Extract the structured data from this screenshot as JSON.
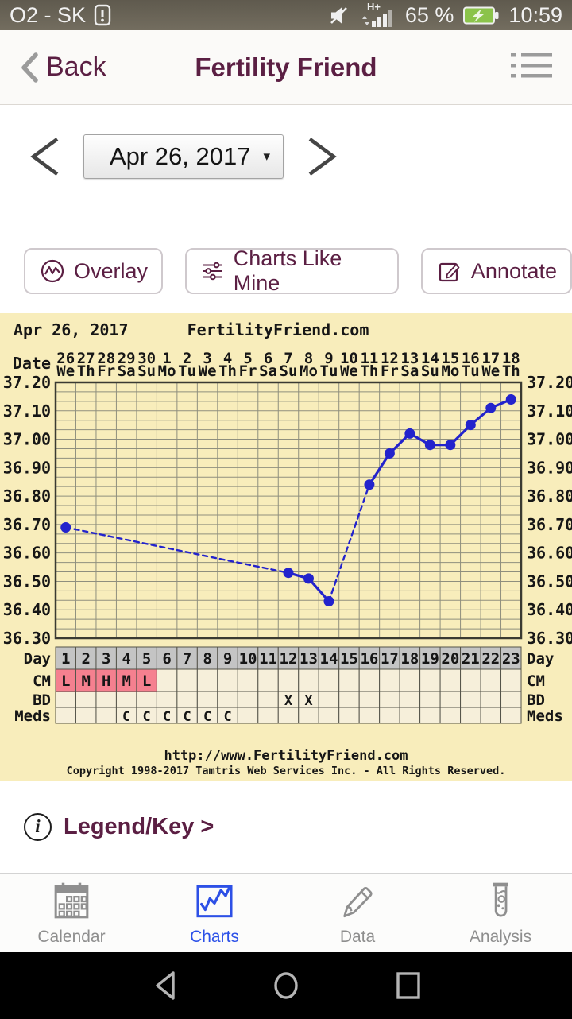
{
  "status_bar": {
    "carrier": "O2 - SK",
    "network": "H+",
    "battery_percent": "65 %",
    "time": "10:59"
  },
  "header": {
    "back_label": "Back",
    "title": "Fertility Friend"
  },
  "date_nav": {
    "selected_date": "Apr 26, 2017"
  },
  "actions": {
    "overlay": "Overlay",
    "charts_like_mine": "Charts Like Mine",
    "annotate": "Annotate"
  },
  "legend": {
    "label": "Legend/Key >"
  },
  "icons": {
    "info_glyph": "i",
    "caret_down": "▾"
  },
  "tab_bar": {
    "items": [
      {
        "label": "Calendar",
        "active": false
      },
      {
        "label": "Charts",
        "active": true
      },
      {
        "label": "Data",
        "active": false
      },
      {
        "label": "Analysis",
        "active": false
      }
    ]
  },
  "chart_data": {
    "type": "line",
    "title": "Apr 26, 2017",
    "watermark": "FertilityFriend.com",
    "footer_url": "http://www.FertilityFriend.com",
    "footer_copyright": "Copyright 1998-2017 Tamtris Web Services Inc. - All Rights Reserved.",
    "axis": {
      "date_row_label": "Date",
      "dates": [
        "26",
        "27",
        "28",
        "29",
        "30",
        "1",
        "2",
        "3",
        "4",
        "5",
        "6",
        "7",
        "8",
        "9",
        "10",
        "11",
        "12",
        "13",
        "14",
        "15",
        "16",
        "17",
        "18"
      ],
      "weekdays": [
        "We",
        "Th",
        "Fr",
        "Sa",
        "Su",
        "Mo",
        "Tu",
        "We",
        "Th",
        "Fr",
        "Sa",
        "Su",
        "Mo",
        "Tu",
        "We",
        "Th",
        "Fr",
        "Sa",
        "Su",
        "Mo",
        "Tu",
        "We",
        "Th"
      ],
      "y_ticks": [
        "37.20",
        "37.10",
        "37.00",
        "36.90",
        "36.80",
        "36.70",
        "36.60",
        "36.50",
        "36.40",
        "36.30"
      ],
      "ylim": [
        36.3,
        37.2
      ],
      "grid": true
    },
    "temps": [
      36.69,
      null,
      null,
      null,
      null,
      null,
      null,
      null,
      null,
      null,
      null,
      36.53,
      36.51,
      36.43,
      null,
      36.84,
      36.95,
      37.02,
      36.98,
      36.98,
      37.05,
      37.11,
      37.14
    ],
    "rows": {
      "day": {
        "label": "Day",
        "values": [
          "1",
          "2",
          "3",
          "4",
          "5",
          "6",
          "7",
          "8",
          "9",
          "10",
          "11",
          "12",
          "13",
          "14",
          "15",
          "16",
          "17",
          "18",
          "19",
          "20",
          "21",
          "22",
          "23"
        ]
      },
      "cm": {
        "label": "CM",
        "values": [
          "L",
          "M",
          "H",
          "M",
          "L",
          "",
          "",
          "",
          "",
          "",
          "",
          "",
          "",
          "",
          "",
          "",
          "",
          "",
          "",
          "",
          "",
          "",
          ""
        ]
      },
      "bd": {
        "label": "BD",
        "values": [
          "",
          "",
          "",
          "",
          "",
          "",
          "",
          "",
          "",
          "",
          "",
          "X",
          "X",
          "",
          "",
          "",
          "",
          "",
          "",
          "",
          "",
          "",
          ""
        ]
      },
      "meds": {
        "label": "Meds",
        "values": [
          "",
          "",
          "",
          "C",
          "C",
          "C",
          "C",
          "C",
          "C",
          "",
          "",
          "",
          "",
          "",
          "",
          "",
          "",
          "",
          "",
          "",
          "",
          "",
          ""
        ]
      }
    },
    "colors": {
      "background": "#f8edbb",
      "grid": "#8f8f7e",
      "border": "#3a3a32",
      "cell_border": "#55544a",
      "cell_bg": "#f6efda",
      "day_row_bg": "#c4c4c4",
      "cm_highlight": "#f5808f",
      "line": "#2323cc",
      "watermark_blue": "#2222dd"
    }
  }
}
